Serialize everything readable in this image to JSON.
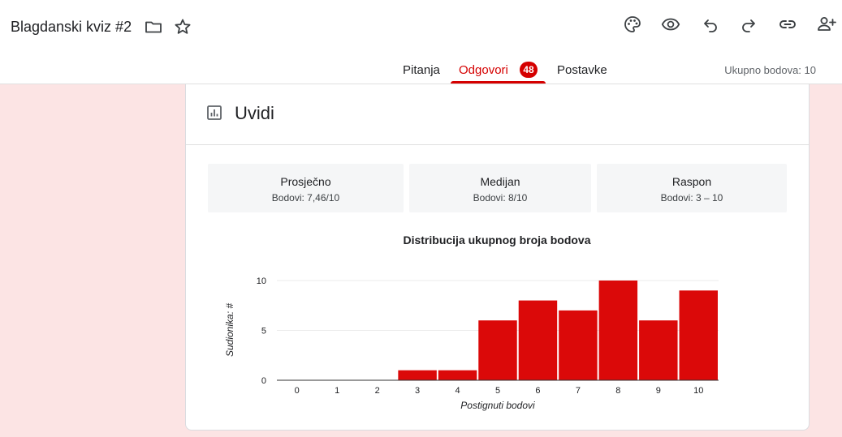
{
  "header": {
    "title": "Blagdanski kviz #2",
    "icons": [
      "folder-icon",
      "star-icon",
      "palette-icon",
      "eye-icon",
      "undo-icon",
      "redo-icon",
      "link-icon",
      "add-person-icon"
    ]
  },
  "tabs": {
    "questions": "Pitanja",
    "responses": "Odgovori",
    "responses_count": "48",
    "settings": "Postavke",
    "total_points": "Ukupno bodova: 10"
  },
  "insights": {
    "title": "Uvidi",
    "icon": "insights-chart-icon",
    "stats": {
      "average_label": "Prosječno",
      "average_value": "Bodovi: 7,46/10",
      "median_label": "Medijan",
      "median_value": "Bodovi: 8/10",
      "range_label": "Raspon",
      "range_value": "Bodovi: 3 – 10"
    }
  },
  "colors": {
    "accent": "#d50000",
    "bar": "#db0909",
    "background": "#fce4e4"
  },
  "chart_data": {
    "type": "bar",
    "title": "Distribucija ukupnog broja bodova",
    "xlabel": "Postignuti bodovi",
    "ylabel": "Sudionika: #",
    "categories": [
      "0",
      "1",
      "2",
      "3",
      "4",
      "5",
      "6",
      "7",
      "8",
      "9",
      "10"
    ],
    "values": [
      0,
      0,
      0,
      1,
      1,
      6,
      8,
      7,
      10,
      6,
      9
    ],
    "yticks": [
      "0",
      "5",
      "10"
    ],
    "ylim": [
      0,
      10
    ],
    "grid": true
  }
}
